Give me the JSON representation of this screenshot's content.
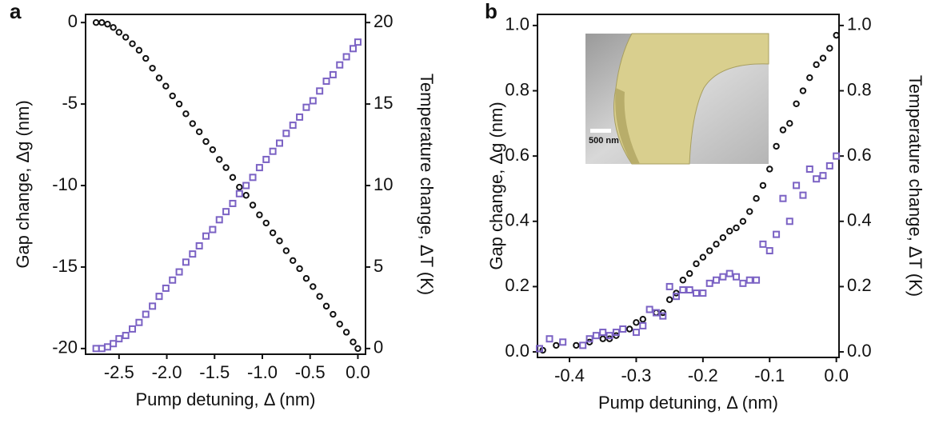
{
  "chart_data": [
    {
      "type": "scatter",
      "panel_label": "a",
      "xlabel": "Pump detuning, Δ (nm)",
      "ylabel": "Gap change,  Δg (nm)",
      "y2label": "Temperature change, ΔT (K)",
      "xlim": [
        -2.85,
        0.08
      ],
      "ylim": [
        -20.35,
        0.5
      ],
      "y2lim": [
        -0.35,
        20.5
      ],
      "xticks": [
        -2.5,
        {
          "value": -2.0,
          "label": "-2.0"
        },
        -1.5,
        {
          "value": -1.0,
          "label": "-1.0"
        },
        -0.5,
        {
          "value": 0.0,
          "label": "0.0"
        }
      ],
      "yticks": [
        0,
        -5,
        -10,
        -15,
        -20
      ],
      "y2ticks": [
        0,
        5,
        10,
        15,
        20
      ],
      "series": [
        {
          "marker": "circle",
          "color": "#111111",
          "x": [
            -2.74,
            -2.68,
            -2.62,
            -2.56,
            -2.5,
            -2.43,
            -2.36,
            -2.29,
            -2.22,
            -2.15,
            -2.08,
            -2.01,
            -1.94,
            -1.87,
            -1.8,
            -1.73,
            -1.66,
            -1.59,
            -1.52,
            -1.45,
            -1.38,
            -1.31,
            -1.24,
            -1.17,
            -1.1,
            -1.03,
            -0.96,
            -0.89,
            -0.82,
            -0.75,
            -0.68,
            -0.61,
            -0.54,
            -0.47,
            -0.4,
            -0.33,
            -0.26,
            -0.19,
            -0.12,
            -0.05,
            0.0
          ],
          "values": [
            0,
            0,
            -0.1,
            -0.3,
            -0.6,
            -0.9,
            -1.3,
            -1.7,
            -2.2,
            -2.8,
            -3.4,
            -3.9,
            -4.5,
            -5.0,
            -5.6,
            -6.2,
            -6.7,
            -7.3,
            -7.8,
            -8.4,
            -8.9,
            -9.5,
            -10.1,
            -10.6,
            -11.2,
            -11.8,
            -12.3,
            -12.9,
            -13.4,
            -14.0,
            -14.6,
            -15.1,
            -15.7,
            -16.2,
            -16.8,
            -17.4,
            -17.9,
            -18.5,
            -19.0,
            -19.6,
            -20.0
          ]
        },
        {
          "marker": "square",
          "color": "#7b62c4",
          "axis": "y2",
          "x": [
            -2.74,
            -2.68,
            -2.62,
            -2.56,
            -2.5,
            -2.43,
            -2.36,
            -2.29,
            -2.22,
            -2.15,
            -2.08,
            -2.01,
            -1.94,
            -1.87,
            -1.8,
            -1.73,
            -1.66,
            -1.59,
            -1.52,
            -1.45,
            -1.38,
            -1.31,
            -1.24,
            -1.17,
            -1.1,
            -1.03,
            -0.96,
            -0.89,
            -0.82,
            -0.75,
            -0.68,
            -0.61,
            -0.54,
            -0.47,
            -0.4,
            -0.33,
            -0.26,
            -0.19,
            -0.12,
            -0.05,
            0.0
          ],
          "values": [
            0,
            0,
            0.1,
            0.3,
            0.6,
            0.8,
            1.2,
            1.6,
            2.1,
            2.6,
            3.2,
            3.7,
            4.2,
            4.7,
            5.3,
            5.8,
            6.3,
            6.9,
            7.3,
            7.9,
            8.4,
            8.9,
            9.5,
            10.0,
            10.5,
            11.1,
            11.6,
            12.1,
            12.6,
            13.2,
            13.7,
            14.2,
            14.8,
            15.2,
            15.8,
            16.4,
            16.8,
            17.4,
            17.9,
            18.4,
            18.8
          ]
        }
      ]
    },
    {
      "type": "scatter",
      "panel_label": "b",
      "inset_label": "500 nm",
      "xlabel": "Pump detuning, Δ (nm)",
      "ylabel": "Gap change,  Δg (nm)",
      "y2label": "Temperature change, ΔT (K)",
      "xlim": [
        -0.448,
        0.004
      ],
      "ylim": [
        -0.017,
        1.034
      ],
      "y2lim": [
        -0.017,
        1.034
      ],
      "xticks": [
        -0.4,
        -0.3,
        -0.2,
        -0.1,
        {
          "value": 0,
          "label": "0.0"
        }
      ],
      "yticks": [
        {
          "value": 0,
          "label": "0.0"
        },
        0.2,
        0.4,
        0.6,
        0.8,
        {
          "value": 1,
          "label": "1.0"
        }
      ],
      "y2ticks": [
        {
          "value": 0,
          "label": "0.0"
        },
        0.2,
        0.4,
        0.6,
        0.8,
        {
          "value": 1,
          "label": "1.0"
        }
      ],
      "series": [
        {
          "marker": "circle",
          "color": "#111111",
          "x": [
            -0.44,
            -0.42,
            -0.39,
            -0.37,
            -0.35,
            -0.34,
            -0.33,
            -0.31,
            -0.3,
            -0.29,
            -0.27,
            -0.26,
            -0.25,
            -0.24,
            -0.23,
            -0.22,
            -0.21,
            -0.2,
            -0.19,
            -0.18,
            -0.17,
            -0.16,
            -0.15,
            -0.14,
            -0.13,
            -0.12,
            -0.11,
            -0.1,
            -0.09,
            -0.08,
            -0.07,
            -0.06,
            -0.05,
            -0.04,
            -0.03,
            -0.02,
            -0.01,
            0.0
          ],
          "values": [
            0.005,
            0.02,
            0.02,
            0.03,
            0.04,
            0.04,
            0.05,
            0.07,
            0.09,
            0.1,
            0.12,
            0.12,
            0.16,
            0.18,
            0.22,
            0.24,
            0.27,
            0.29,
            0.31,
            0.33,
            0.35,
            0.37,
            0.38,
            0.4,
            0.43,
            0.47,
            0.51,
            0.56,
            0.63,
            0.68,
            0.7,
            0.76,
            0.8,
            0.84,
            0.88,
            0.9,
            0.93,
            0.97
          ]
        },
        {
          "marker": "square",
          "color": "#7b62c4",
          "axis": "y2",
          "x": [
            -0.445,
            -0.43,
            -0.41,
            -0.38,
            -0.37,
            -0.36,
            -0.35,
            -0.34,
            -0.33,
            -0.32,
            -0.3,
            -0.29,
            -0.28,
            -0.27,
            -0.26,
            -0.25,
            -0.24,
            -0.23,
            -0.22,
            -0.21,
            -0.2,
            -0.19,
            -0.18,
            -0.17,
            -0.16,
            -0.15,
            -0.14,
            -0.13,
            -0.12,
            -0.11,
            -0.1,
            -0.09,
            -0.08,
            -0.07,
            -0.06,
            -0.05,
            -0.04,
            -0.03,
            -0.02,
            -0.01,
            0.0
          ],
          "values": [
            0.01,
            0.04,
            0.03,
            0.02,
            0.04,
            0.05,
            0.06,
            0.05,
            0.06,
            0.07,
            0.06,
            0.08,
            0.13,
            0.12,
            0.11,
            0.2,
            0.17,
            0.19,
            0.19,
            0.18,
            0.18,
            0.21,
            0.22,
            0.23,
            0.24,
            0.23,
            0.21,
            0.22,
            0.22,
            0.33,
            0.31,
            0.36,
            0.47,
            0.4,
            0.51,
            0.48,
            0.56,
            0.53,
            0.54,
            0.57,
            0.6
          ]
        }
      ]
    }
  ]
}
